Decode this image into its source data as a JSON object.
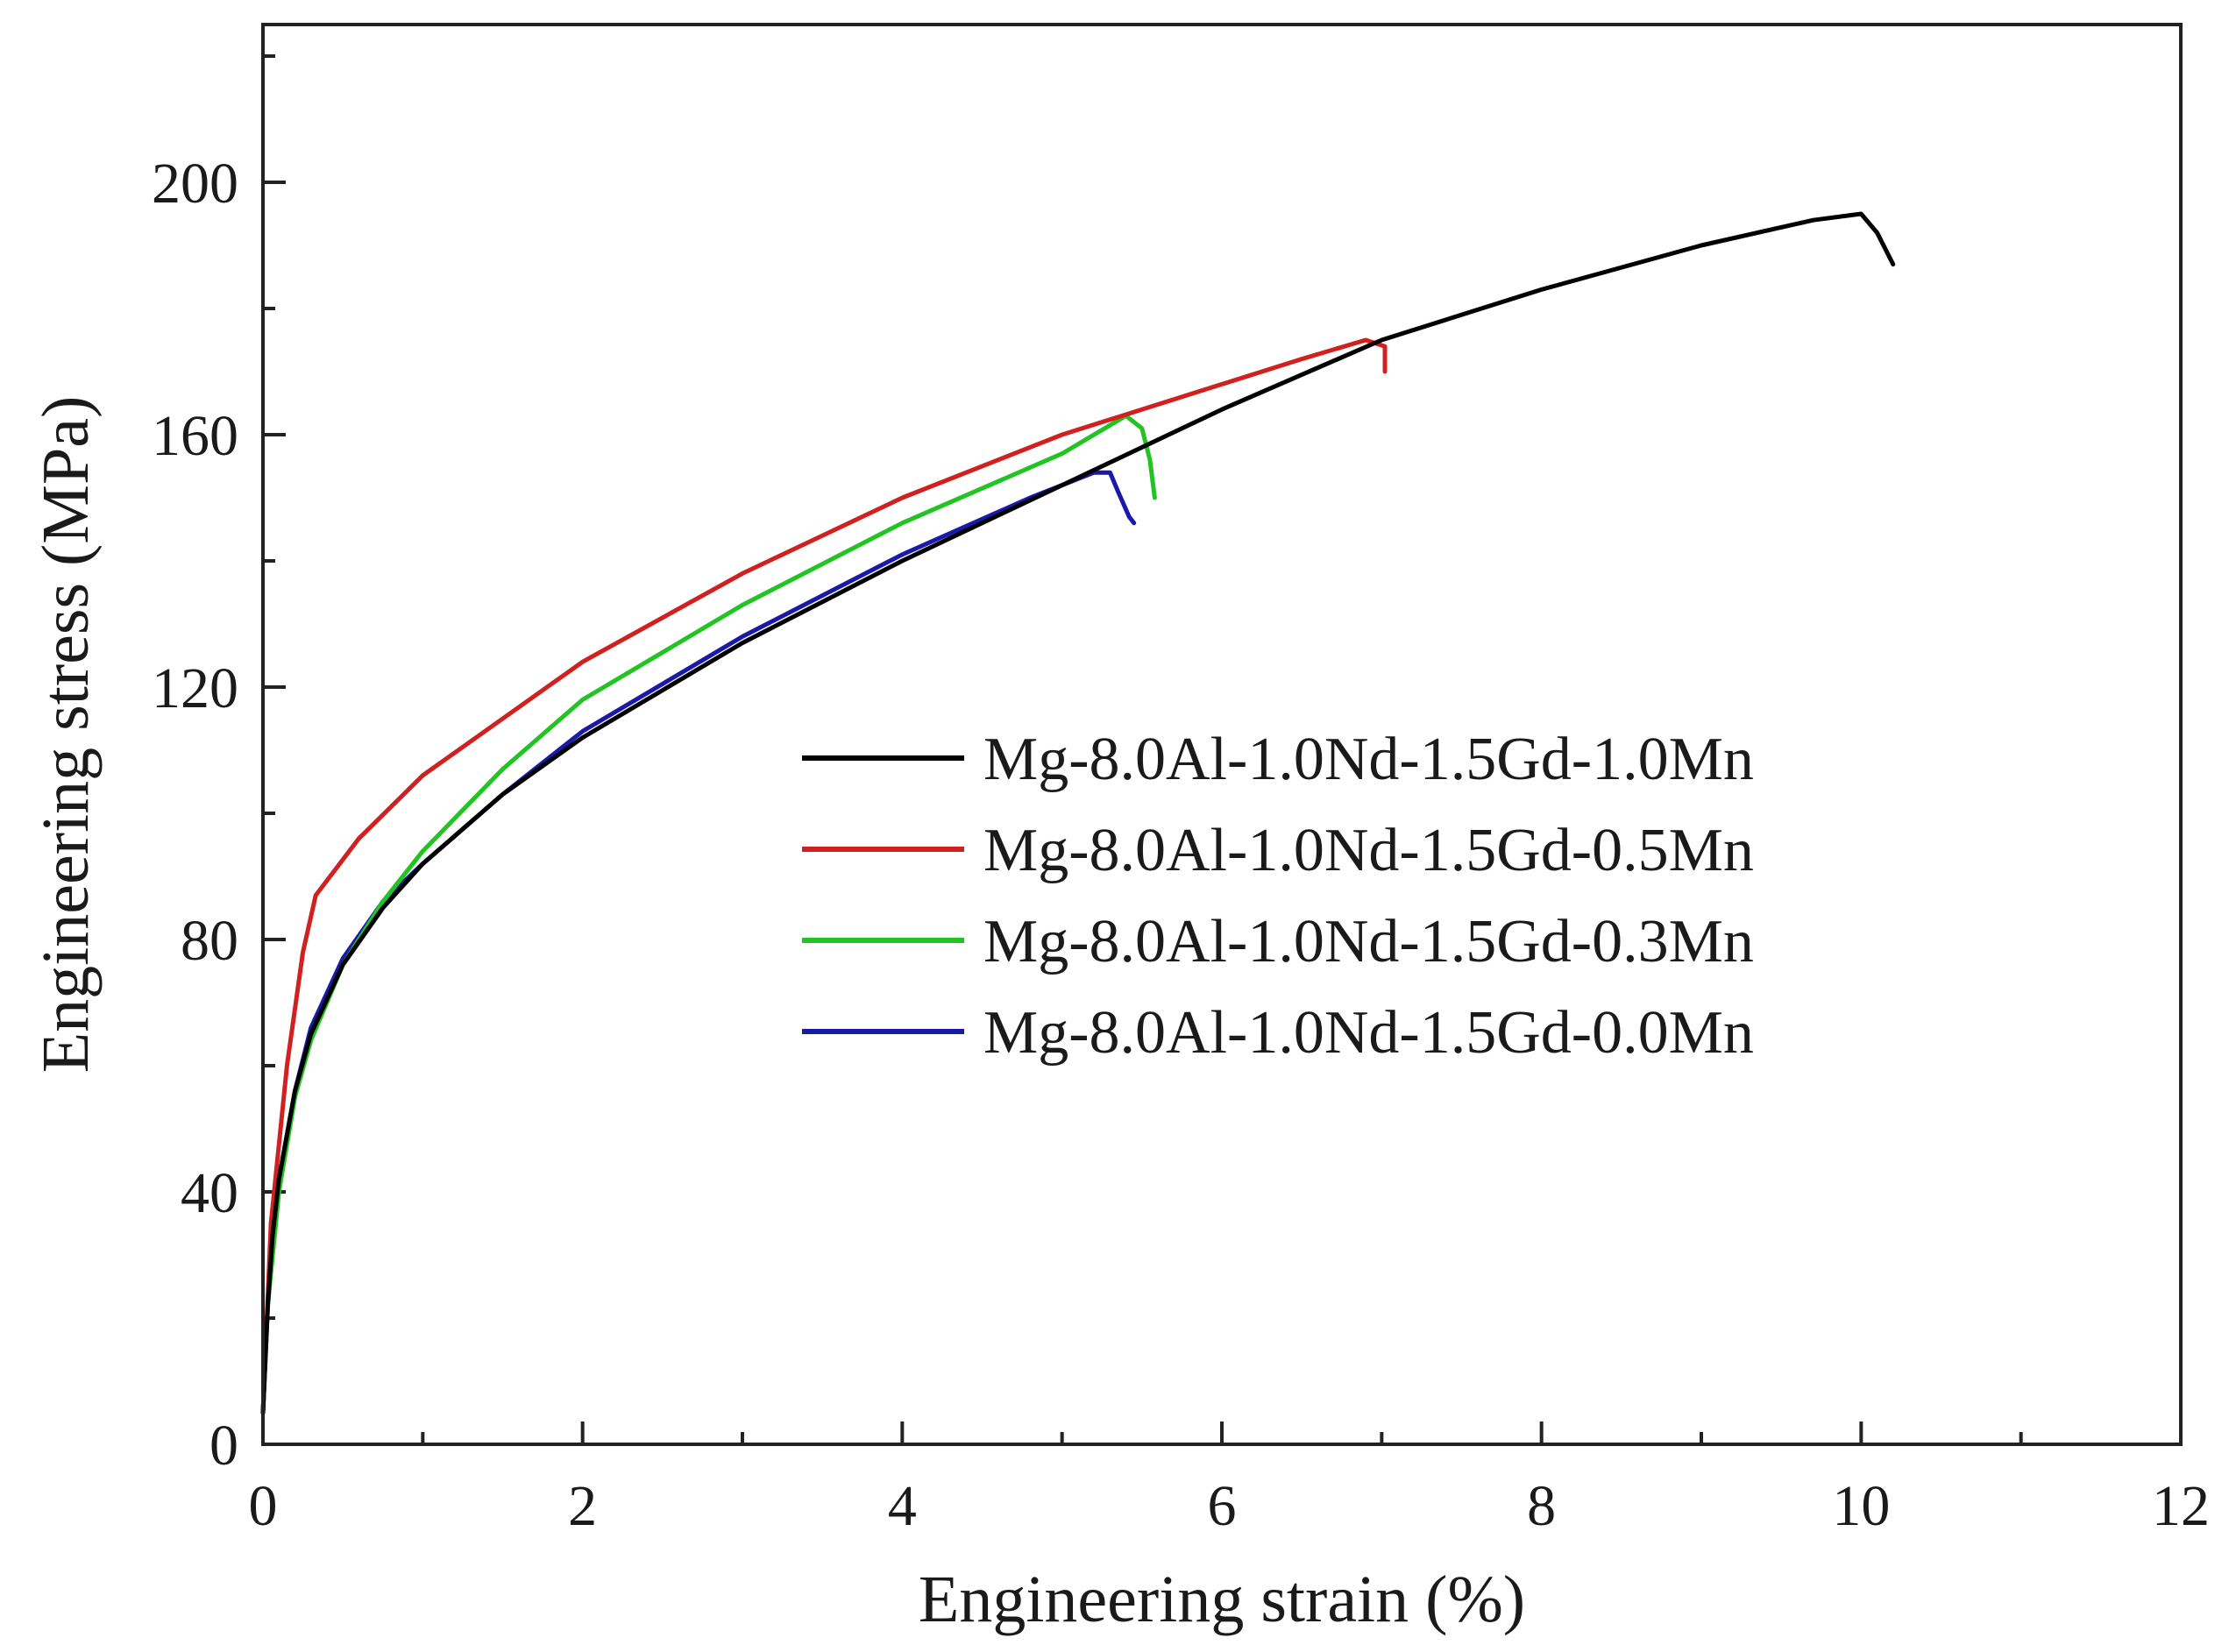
{
  "chart_data": {
    "type": "line",
    "title": "",
    "xlabel": "Engineering strain (%)",
    "ylabel": "Engineering stress (MPa)",
    "xlim": [
      0,
      12
    ],
    "ylim": [
      0,
      225
    ],
    "xticks": [
      0,
      2,
      4,
      6,
      8,
      10,
      12
    ],
    "yticks": [
      0,
      40,
      80,
      120,
      160,
      200
    ],
    "x_minor_ticks": [
      1,
      3,
      5,
      7,
      9,
      11
    ],
    "y_minor_ticks": [
      20,
      60,
      100,
      140,
      180,
      220
    ],
    "grid": false,
    "legend_position": "center-right",
    "series": [
      {
        "name": "Mg-8.0Al-1.0Nd-1.5Gd-1.0Mn",
        "color": "#000000",
        "points": [
          [
            0,
            5
          ],
          [
            0.03,
            22
          ],
          [
            0.06,
            33
          ],
          [
            0.1,
            42
          ],
          [
            0.2,
            56
          ],
          [
            0.3,
            65
          ],
          [
            0.5,
            76
          ],
          [
            0.75,
            85
          ],
          [
            1,
            92
          ],
          [
            1.5,
            103
          ],
          [
            2,
            112
          ],
          [
            3,
            127
          ],
          [
            4,
            140
          ],
          [
            5,
            152
          ],
          [
            6,
            164
          ],
          [
            7,
            175
          ],
          [
            8,
            183
          ],
          [
            9,
            190
          ],
          [
            9.7,
            194
          ],
          [
            10,
            195
          ],
          [
            10.1,
            192
          ],
          [
            10.2,
            187
          ]
        ]
      },
      {
        "name": "Mg-8.0Al-1.0Nd-1.5Gd-0.5Mn",
        "color": "#d02020",
        "points": [
          [
            0,
            5
          ],
          [
            0.05,
            35
          ],
          [
            0.15,
            60
          ],
          [
            0.25,
            78
          ],
          [
            0.33,
            87
          ],
          [
            0.45,
            91
          ],
          [
            0.6,
            96
          ],
          [
            0.8,
            101
          ],
          [
            1,
            106
          ],
          [
            1.5,
            115
          ],
          [
            2,
            124
          ],
          [
            3,
            138
          ],
          [
            4,
            150
          ],
          [
            5,
            160
          ],
          [
            6,
            168
          ],
          [
            6.5,
            172
          ],
          [
            6.9,
            175
          ],
          [
            7.02,
            174
          ],
          [
            7.02,
            170
          ]
        ]
      },
      {
        "name": "Mg-8.0Al-1.0Nd-1.5Gd-0.3Mn",
        "color": "#22c422",
        "points": [
          [
            0,
            5
          ],
          [
            0.03,
            22
          ],
          [
            0.1,
            40
          ],
          [
            0.2,
            55
          ],
          [
            0.3,
            64
          ],
          [
            0.5,
            76
          ],
          [
            0.75,
            86
          ],
          [
            1,
            94
          ],
          [
            1.5,
            107
          ],
          [
            2,
            118
          ],
          [
            3,
            133
          ],
          [
            4,
            146
          ],
          [
            5,
            157
          ],
          [
            5.4,
            163
          ],
          [
            5.5,
            161
          ],
          [
            5.55,
            156
          ],
          [
            5.58,
            150
          ]
        ]
      },
      {
        "name": "Mg-8.0Al-1.0Nd-1.5Gd-0.0Mn",
        "color": "#1a1aaa",
        "points": [
          [
            0,
            5
          ],
          [
            0.03,
            22
          ],
          [
            0.1,
            42
          ],
          [
            0.2,
            56
          ],
          [
            0.3,
            66
          ],
          [
            0.5,
            77
          ],
          [
            0.75,
            86
          ],
          [
            1,
            92
          ],
          [
            1.5,
            103
          ],
          [
            2,
            113
          ],
          [
            3,
            128
          ],
          [
            4,
            141
          ],
          [
            4.8,
            150
          ],
          [
            5.2,
            154
          ],
          [
            5.3,
            154
          ],
          [
            5.35,
            151
          ],
          [
            5.42,
            147
          ],
          [
            5.45,
            146
          ]
        ]
      }
    ]
  }
}
